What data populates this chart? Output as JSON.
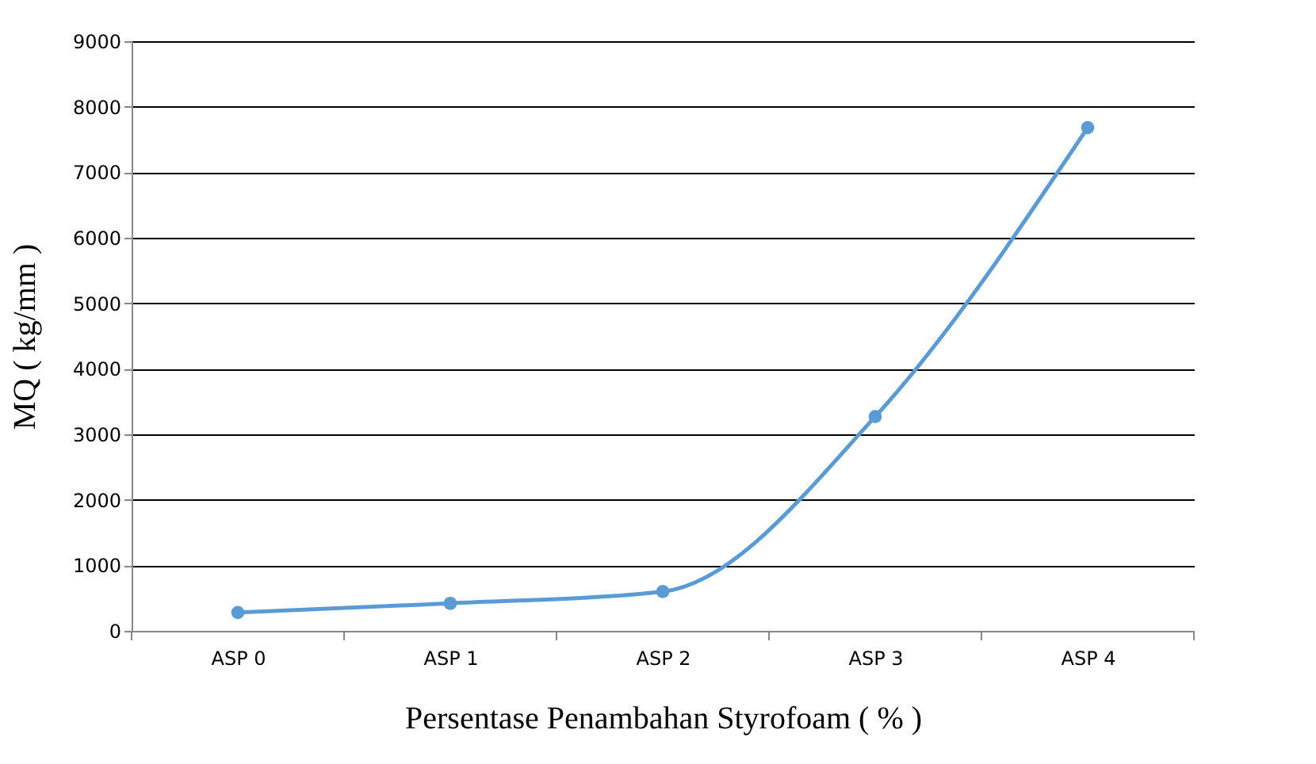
{
  "chart_data": {
    "type": "line",
    "categories": [
      "ASP 0",
      "ASP 1",
      "ASP 2",
      "ASP 3",
      "ASP 4"
    ],
    "series": [
      {
        "color": "#5b9bd5",
        "values": [
          280,
          420,
          600,
          3270,
          7680
        ]
      }
    ],
    "xlabel": "Persentase Penambahan Styrofoam ( % )",
    "ylabel": "MQ ( kg/mm )",
    "ylim": [
      0,
      9000
    ],
    "yticks": [
      0,
      1000,
      2000,
      3000,
      4000,
      5000,
      6000,
      7000,
      8000,
      9000
    ],
    "grid": "y",
    "marker": "circle",
    "line_style": "solid"
  }
}
